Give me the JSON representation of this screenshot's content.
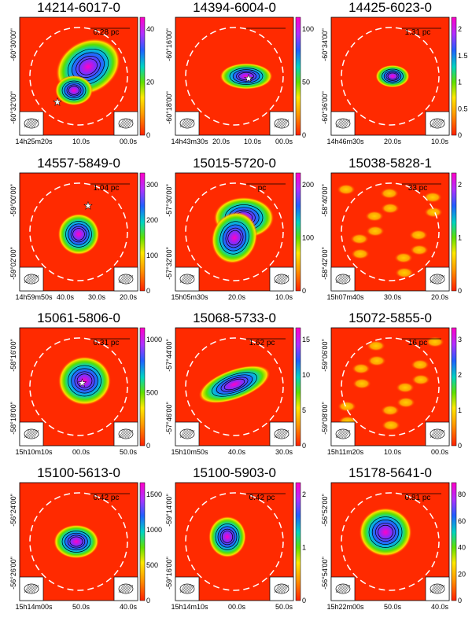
{
  "panels": [
    {
      "title": "14214-6017-0",
      "scale": "0.28 pc",
      "ra": [
        "14h25m20s",
        "10.0s",
        "00.0s"
      ],
      "dec": [
        "-60°30'00\"",
        "-60°32'00\""
      ],
      "cbar": [
        "0",
        "20",
        "40"
      ],
      "star": true
    },
    {
      "title": "14394-6004-0",
      "scale": "",
      "ra": [
        "14h43m30s",
        "20.0s",
        "10.0s",
        "00.0s"
      ],
      "dec": [
        "-60°16'00\"",
        "-60°18'00\""
      ],
      "cbar": [
        "0",
        "50",
        "100"
      ],
      "star": true
    },
    {
      "title": "14425-6023-0",
      "scale": "1.31 pc",
      "ra": [
        "14h46m30s",
        "20.0s",
        "10.0s"
      ],
      "dec": [
        "-60°34'00\"",
        "-60°36'00\""
      ],
      "cbar": [
        "0",
        "0.5",
        "1",
        "1.5",
        "2"
      ],
      "star": false
    },
    {
      "title": "14557-5849-0",
      "scale": "1.04 pc",
      "ra": [
        "14h59m50s",
        "40.0s",
        "30.0s",
        "20.0s"
      ],
      "dec": [
        "-59°00'00\"",
        "-59°02'00\""
      ],
      "cbar": [
        "0",
        "100",
        "200",
        "300"
      ],
      "star": true
    },
    {
      "title": "15015-5720-0",
      "scale": "pc",
      "ra": [
        "15h05m30s",
        "20.0s",
        "10.0s"
      ],
      "dec": [
        "-57°30'00\"",
        "-57°32'00\""
      ],
      "cbar": [
        "0",
        "100",
        "200"
      ],
      "star": false
    },
    {
      "title": "15038-5828-1",
      "scale": "33 pc",
      "ra": [
        "15h07m40s",
        "30.0s",
        "20.0s"
      ],
      "dec": [
        "-58°40'00\"",
        "-58°42'00\""
      ],
      "cbar": [
        "0",
        "1",
        "2"
      ],
      "star": false
    },
    {
      "title": "15061-5806-0",
      "scale": "0.31 pc",
      "ra": [
        "15h10m10s",
        "00.0s",
        "50.0s"
      ],
      "dec": [
        "-58°16'00\"",
        "-58°18'00\""
      ],
      "cbar": [
        "0",
        "500",
        "1000"
      ],
      "star": true
    },
    {
      "title": "15068-5733-0",
      "scale": "1.62 pc",
      "ra": [
        "15h10m50s",
        "40.0s",
        "30.0s"
      ],
      "dec": [
        "-57°44'00\"",
        "-57°46'00\""
      ],
      "cbar": [
        "0",
        "5",
        "10",
        "15"
      ],
      "star": false
    },
    {
      "title": "15072-5855-0",
      "scale": "16 pc",
      "ra": [
        "15h11m20s",
        "10.0s",
        "00.0s"
      ],
      "dec": [
        "-59°06'00\"",
        "-59°08'00\""
      ],
      "cbar": [
        "0",
        "1",
        "2",
        "3"
      ],
      "star": false
    },
    {
      "title": "15100-5613-0",
      "scale": "0.42 pc",
      "ra": [
        "15h14m00s",
        "50.0s",
        "40.0s"
      ],
      "dec": [
        "-56°24'00\"",
        "-56°26'00\""
      ],
      "cbar": [
        "0",
        "500",
        "1000",
        "1500"
      ],
      "star": false
    },
    {
      "title": "15100-5903-0",
      "scale": "0.42 pc",
      "ra": [
        "15h14m10s",
        "00.0s",
        "50.0s"
      ],
      "dec": [
        "-59°14'00\"",
        "-59°16'00\""
      ],
      "cbar": [
        "0",
        "1",
        "2"
      ],
      "star": false
    },
    {
      "title": "15178-5641-0",
      "scale": "0.81 pc",
      "ra": [
        "15h22m00s",
        "50.0s",
        "40.0s"
      ],
      "dec": [
        "-56°52'00\"",
        "-56°54'00\""
      ],
      "cbar": [
        "0",
        "20",
        "40",
        "60",
        "80"
      ],
      "star": false
    }
  ]
}
